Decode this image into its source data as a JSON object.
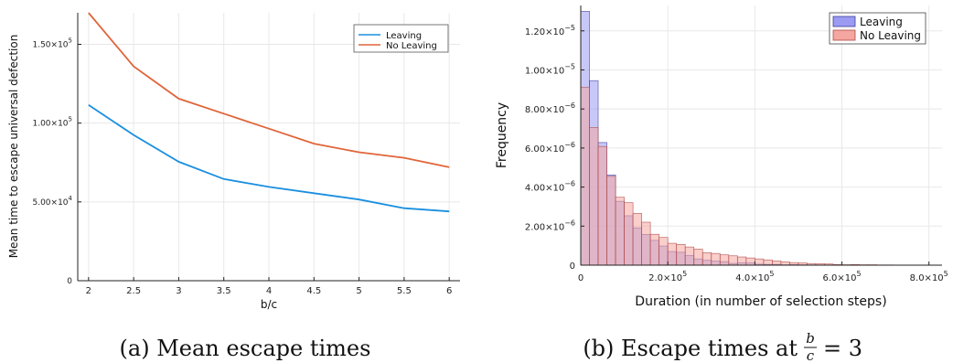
{
  "colors": {
    "leaving_line": "#1a8fe0",
    "no_leaving_line": "#e0653a",
    "leaving_bar_fill": "#9b9bf2",
    "leaving_bar_stroke": "#3d3d9a",
    "no_leaving_bar_fill": "#f4a6a1",
    "no_leaving_bar_stroke": "#b04a46",
    "grid": "#e8e8e8",
    "axis": "#222222"
  },
  "chart_data": [
    {
      "type": "line",
      "caption": "(a) Mean escape times",
      "xlabel": "b/c",
      "ylabel": "Mean time to escape universal defection",
      "xlim": [
        1.88,
        6.12
      ],
      "ylim": [
        0,
        170000
      ],
      "grid": true,
      "legend_position": "top-right",
      "x_ticks": [
        2,
        2.5,
        3,
        3.5,
        4,
        4.5,
        5,
        5.5,
        6
      ],
      "x_tick_labels": [
        "2",
        "2.5",
        "3",
        "3.5",
        "4",
        "4.5",
        "5",
        "5.5",
        "6"
      ],
      "y_ticks": [
        {
          "value": 0,
          "mantissa": "0",
          "exponent": ""
        },
        {
          "value": 50000,
          "mantissa": "5.00×10",
          "exponent": "4"
        },
        {
          "value": 100000,
          "mantissa": "1.00×10",
          "exponent": "5"
        },
        {
          "value": 150000,
          "mantissa": "1.50×10",
          "exponent": "5"
        }
      ],
      "x": [
        2,
        2.5,
        3,
        3.5,
        4,
        4.5,
        5,
        5.5,
        6
      ],
      "series": [
        {
          "name": "Leaving",
          "color_key": "leaving_line",
          "values": [
            111500,
            92500,
            75500,
            64500,
            59500,
            55500,
            51500,
            46000,
            44000
          ]
        },
        {
          "name": "No Leaving",
          "color_key": "no_leaving_line",
          "values": [
            172000,
            136000,
            115500,
            106000,
            96500,
            87000,
            81500,
            78000,
            72000
          ]
        }
      ]
    },
    {
      "type": "bar",
      "subtype": "histogram",
      "caption_prefix": "(b) Escape times at",
      "caption_math": {
        "numerator": "b",
        "denominator": "c",
        "rhs": "= 3"
      },
      "xlabel": "Duration (in number of selection steps)",
      "ylabel": "Frequency",
      "xlim": [
        0,
        830000
      ],
      "ylim": [
        0,
        1.33e-05
      ],
      "grid": true,
      "legend_position": "top-right",
      "x_ticks": [
        {
          "value": 0,
          "mantissa": "0",
          "exponent": ""
        },
        {
          "value": 200000,
          "mantissa": "2.0×10",
          "exponent": "5"
        },
        {
          "value": 400000,
          "mantissa": "4.0×10",
          "exponent": "5"
        },
        {
          "value": 600000,
          "mantissa": "6.0×10",
          "exponent": "5"
        },
        {
          "value": 800000,
          "mantissa": "8.0×10",
          "exponent": "5"
        }
      ],
      "y_ticks": [
        {
          "value": 0,
          "mantissa": "0",
          "exponent": ""
        },
        {
          "value": 2e-06,
          "mantissa": "2.00×10",
          "exponent": "−6"
        },
        {
          "value": 4e-06,
          "mantissa": "4.00×10",
          "exponent": "−6"
        },
        {
          "value": 6e-06,
          "mantissa": "6.00×10",
          "exponent": "−6"
        },
        {
          "value": 8e-06,
          "mantissa": "8.00×10",
          "exponent": "−6"
        },
        {
          "value": 1e-05,
          "mantissa": "1.00×10",
          "exponent": "−5"
        },
        {
          "value": 1.2e-05,
          "mantissa": "1.20×10",
          "exponent": "−5"
        }
      ],
      "bin_width": 20000,
      "series": [
        {
          "name": "Leaving",
          "color_key": "leaving_bar",
          "values": [
            1.3e-05,
            9.45e-06,
            6.28e-06,
            4.62e-06,
            3.27e-06,
            2.53e-06,
            1.91e-06,
            1.57e-06,
            1.27e-06,
            9.8e-07,
            7e-07,
            6.6e-07,
            5e-07,
            3.2e-07,
            2.5e-07,
            2.1e-07,
            1.8e-07,
            9e-08,
            1.2e-07,
            1.1e-07,
            5e-08,
            4e-08,
            4e-08,
            2e-08,
            3e-08,
            2e-08,
            1e-08,
            1e-08,
            1e-08,
            1e-08,
            1e-08,
            1e-08,
            0,
            0,
            0,
            0,
            0,
            0,
            0,
            0,
            0,
            0
          ]
        },
        {
          "name": "No Leaving",
          "color_key": "no_leaving_bar",
          "values": [
            9.1e-06,
            7.05e-06,
            6.08e-06,
            4.55e-06,
            3.48e-06,
            3.2e-06,
            2.65e-06,
            2.2e-06,
            1.58e-06,
            1.42e-06,
            1.12e-06,
            1.06e-06,
            9.3e-07,
            8.2e-07,
            6.4e-07,
            6e-07,
            5.3e-07,
            4.8e-07,
            4.2e-07,
            3.7e-07,
            3.2e-07,
            2.7e-07,
            2.2e-07,
            1.7e-07,
            1.3e-07,
            1.1e-07,
            8e-08,
            7e-08,
            6e-08,
            3e-08,
            2e-08,
            3e-08,
            2e-08,
            2e-08,
            1e-08,
            1e-08,
            0,
            0,
            0,
            0,
            0,
            0
          ]
        }
      ]
    }
  ]
}
